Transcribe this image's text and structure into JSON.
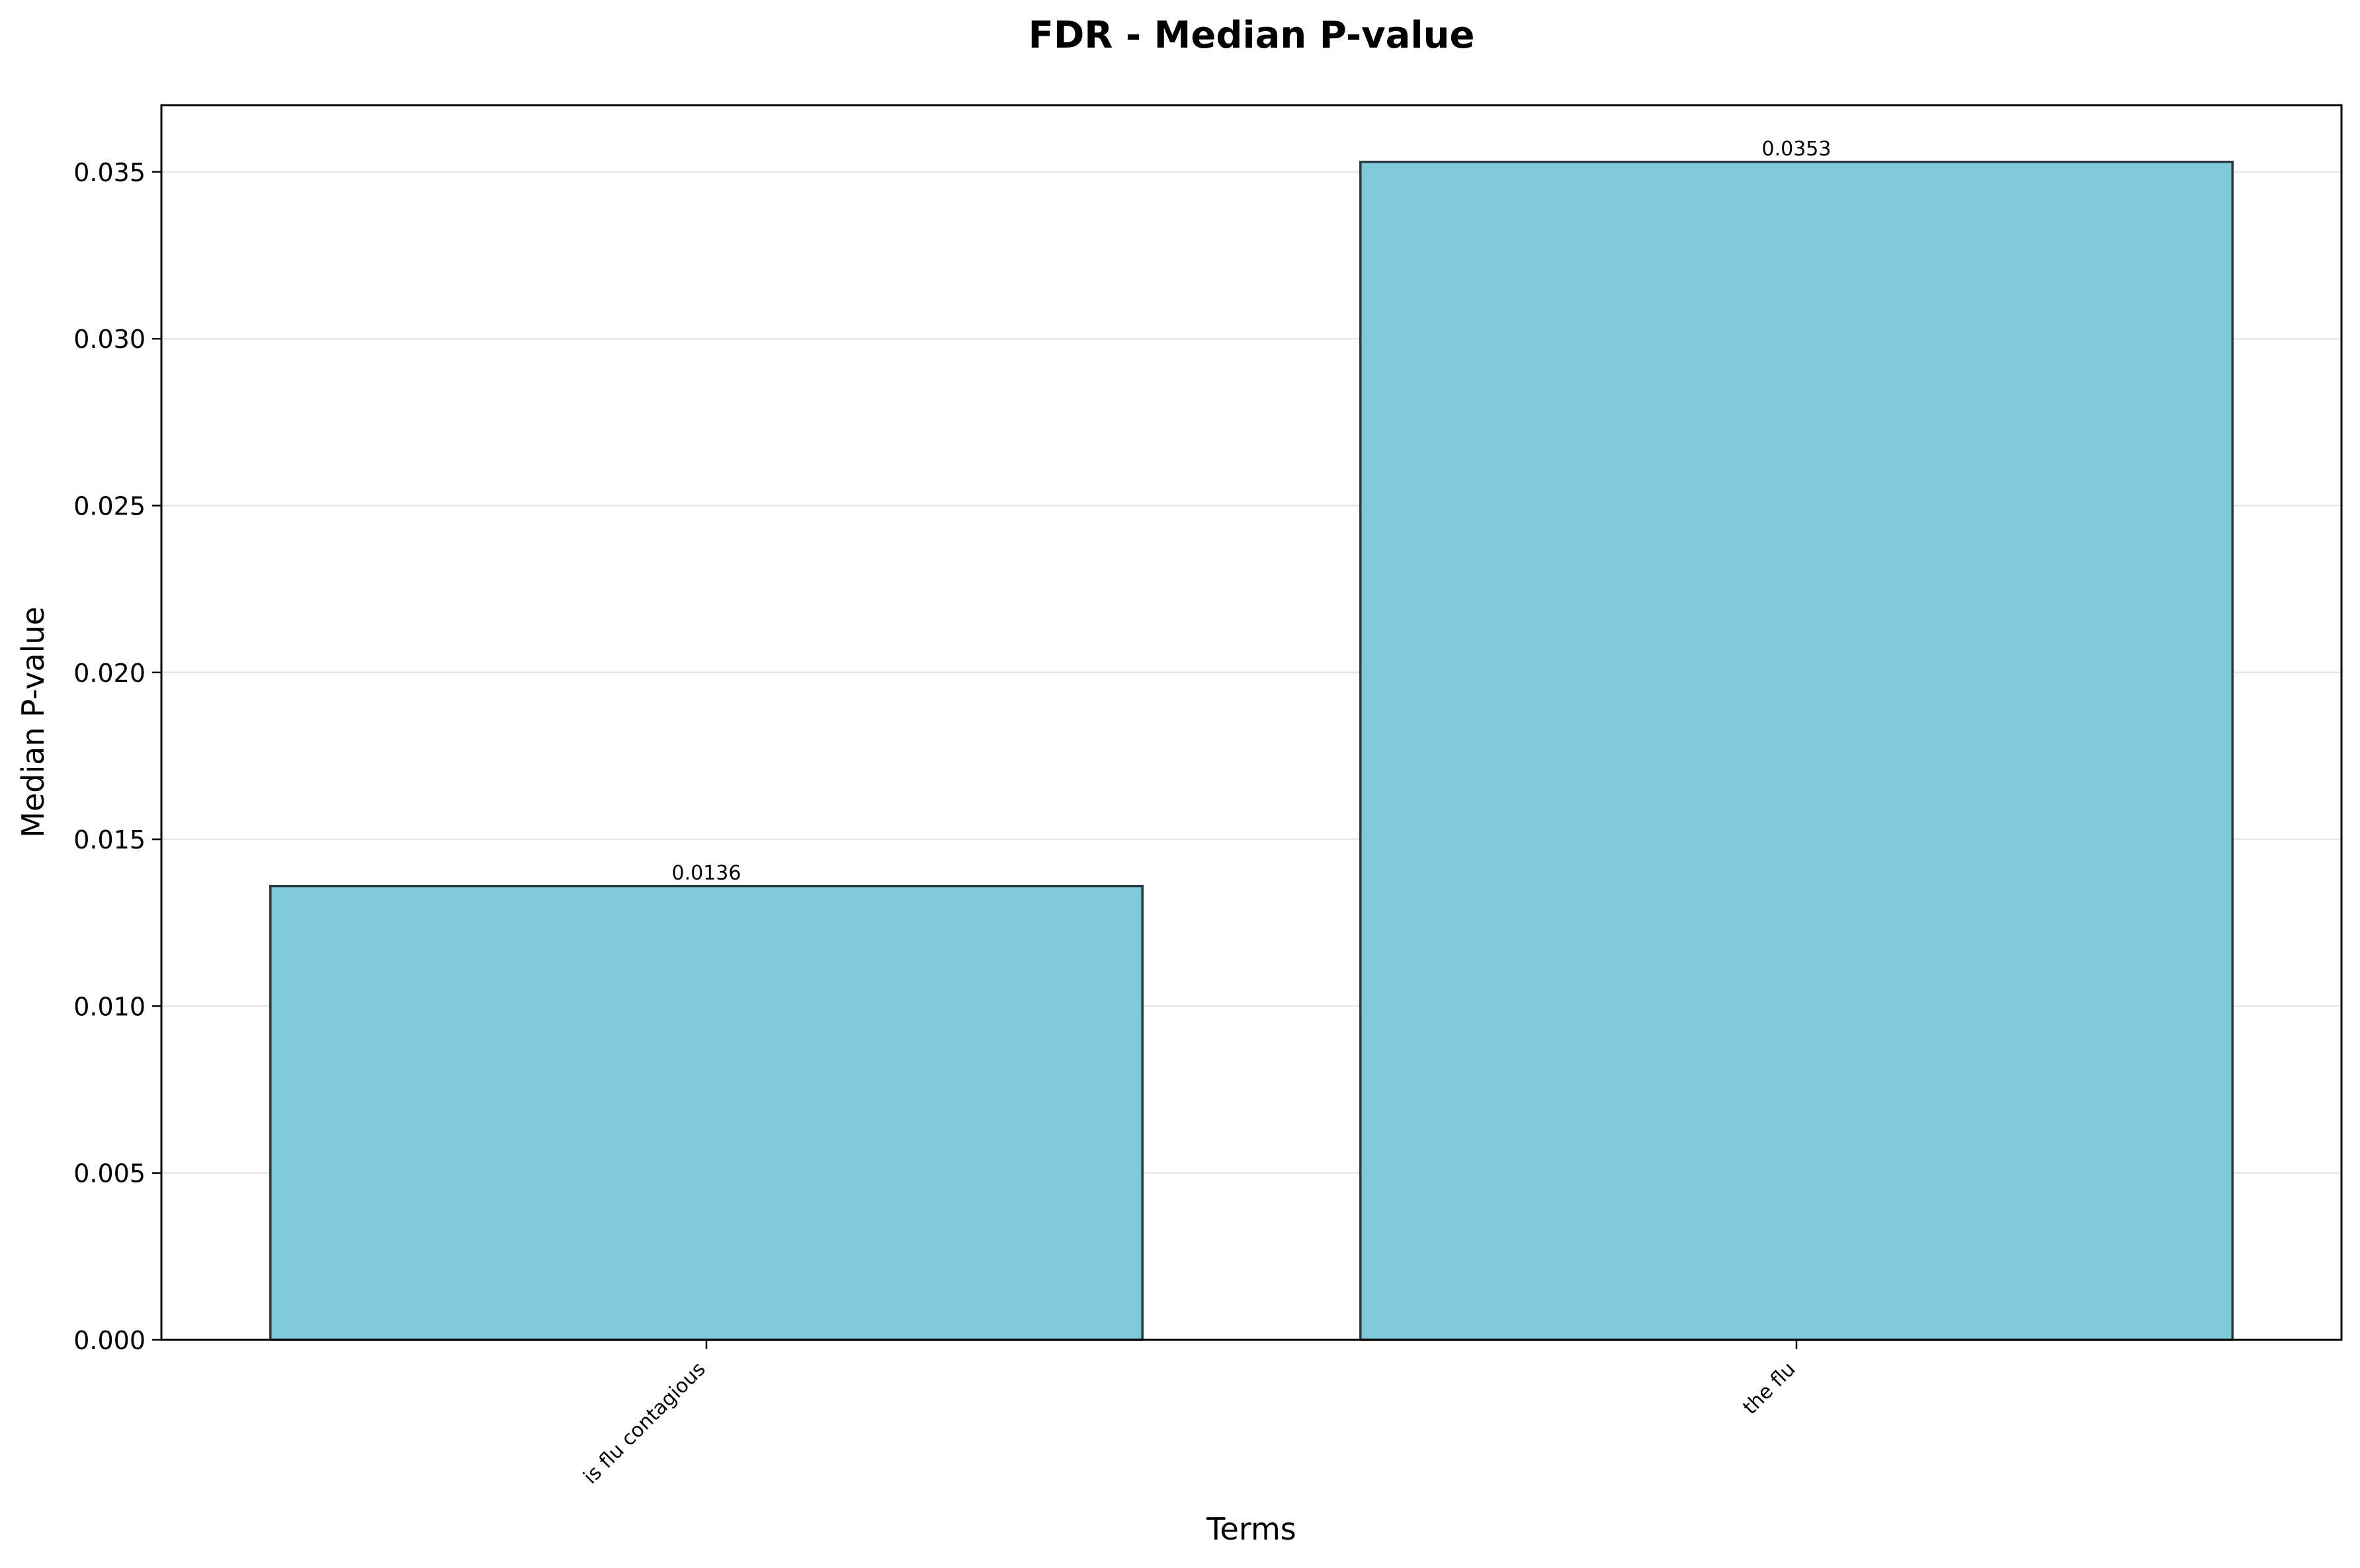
{
  "chart_data": {
    "type": "bar",
    "title": "FDR - Median P-value",
    "xlabel": "Terms",
    "ylabel": "Median P-value",
    "categories": [
      "is flu contagious",
      "the flu"
    ],
    "values": [
      0.0136,
      0.0353
    ],
    "data_labels": [
      "0.0136",
      "0.0353"
    ],
    "ylim": [
      0,
      0.037
    ],
    "yticks": [
      0,
      0.005,
      0.01,
      0.015,
      0.02,
      0.025,
      0.03,
      0.035
    ],
    "ytick_labels": [
      "0.000",
      "0.005",
      "0.010",
      "0.015",
      "0.020",
      "0.025",
      "0.030",
      "0.035"
    ],
    "grid": "y",
    "legend": "none",
    "colors": {
      "bar_fill": "#7ecadc",
      "bar_edge": "#2b3a3f",
      "grid": "#e6e6e6",
      "axis": "#000000"
    }
  }
}
